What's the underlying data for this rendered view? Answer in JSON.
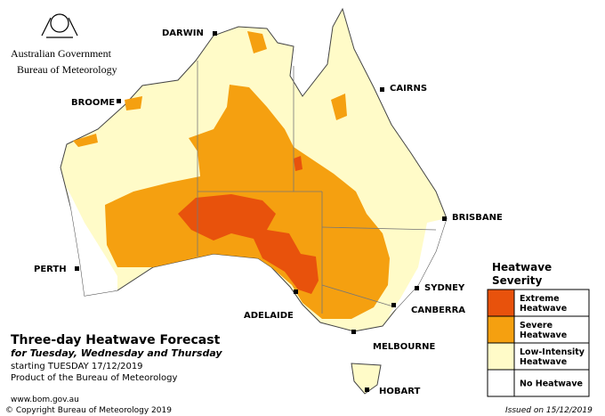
{
  "header": {
    "government": "Australian Government",
    "agency": "Bureau of Meteorology"
  },
  "cities": [
    "DARWIN",
    "CAIRNS",
    "BROOME",
    "BRISBANE",
    "PERTH",
    "SYDNEY",
    "ADELAIDE",
    "CANBERRA",
    "MELBOURNE",
    "HOBART"
  ],
  "title": "Three-day Heatwave Forecast",
  "subtitle": "for Tuesday, Wednesday and Thursday",
  "start": "starting TUESDAY 17/12/2019",
  "product": "Product of the Bureau of Meteorology",
  "website": "www.bom.gov.au",
  "copyright": "© Copyright Bureau of Meteorology 2019",
  "issued": "Issued on 15/12/2019",
  "legend": {
    "title": [
      "Heatwave",
      "Severity"
    ],
    "items": [
      {
        "label": [
          "Extreme",
          "Heatwave"
        ],
        "color": "#e8520c"
      },
      {
        "label": [
          "Severe",
          "Heatwave"
        ],
        "color": "#f5a010"
      },
      {
        "label": [
          "Low-Intensity",
          "Heatwave"
        ],
        "color": "#fffbc8"
      },
      {
        "label": [
          "No Heatwave"
        ],
        "color": "#ffffff"
      }
    ]
  }
}
